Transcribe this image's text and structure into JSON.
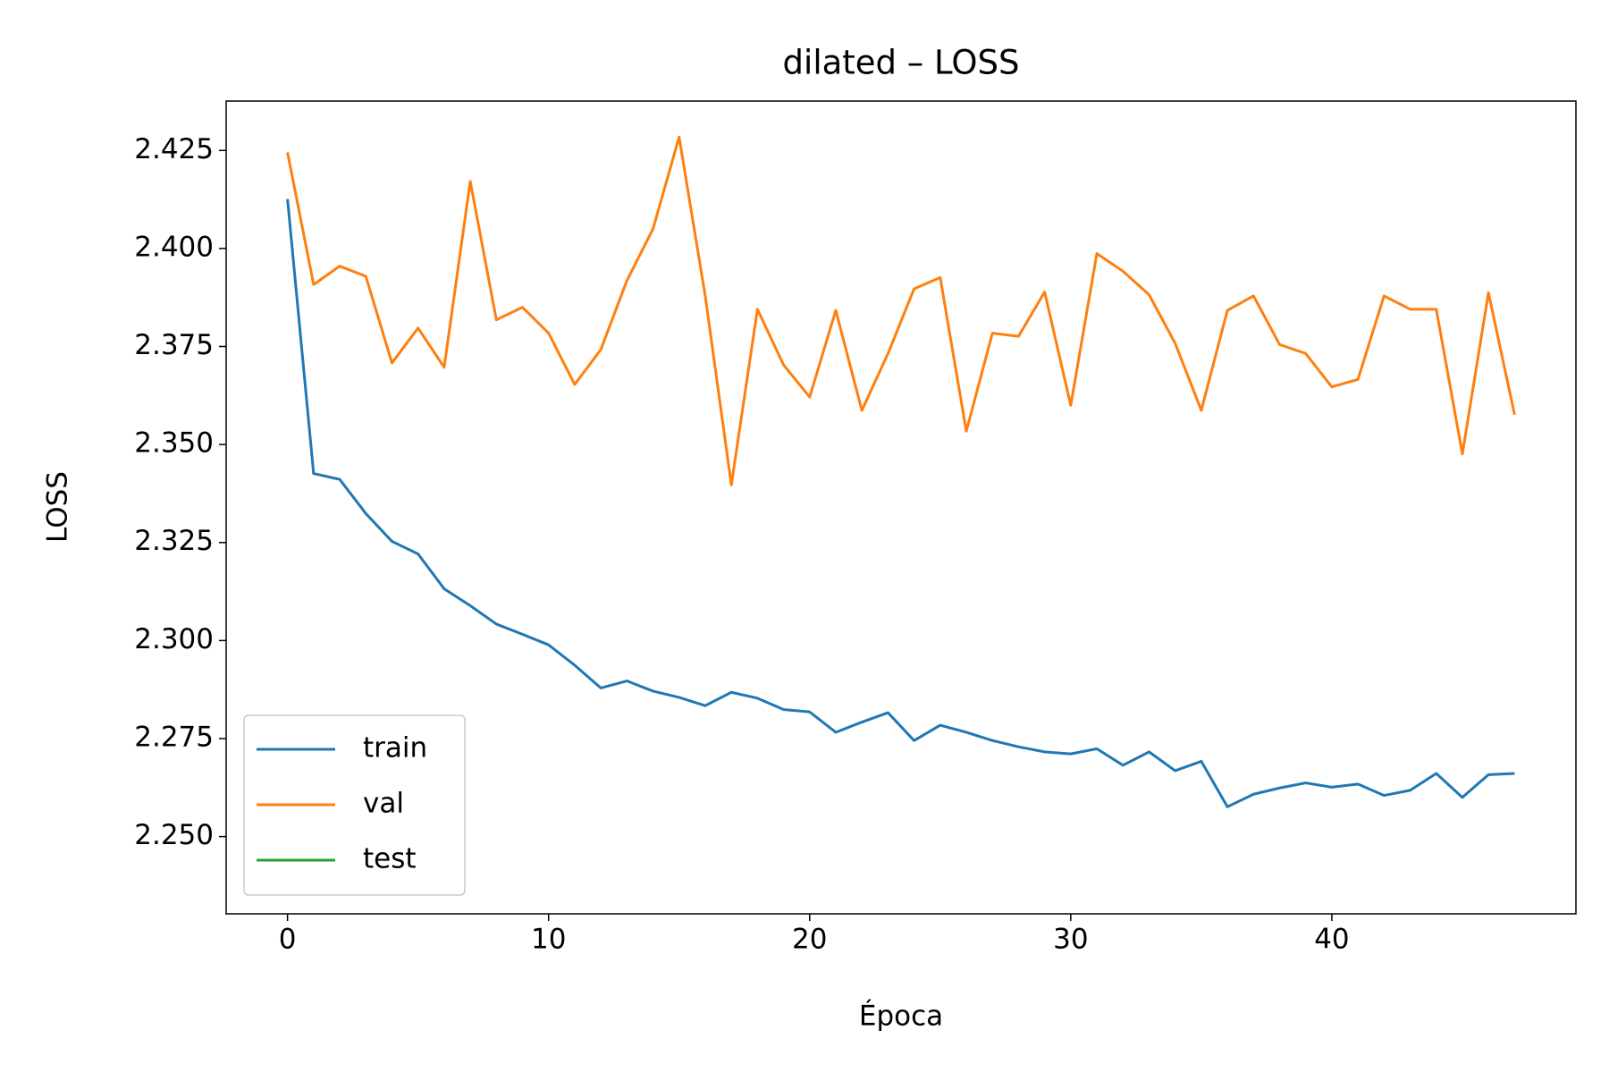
{
  "chart_data": {
    "type": "line",
    "title": "dilated – LOSS",
    "xlabel": "Época",
    "ylabel": "LOSS",
    "x": [
      0,
      1,
      2,
      3,
      4,
      5,
      6,
      7,
      8,
      9,
      10,
      11,
      12,
      13,
      14,
      15,
      16,
      17,
      18,
      19,
      20,
      21,
      22,
      23,
      24,
      25,
      26,
      27,
      28,
      29,
      30,
      31,
      32,
      33,
      34,
      35,
      36,
      37,
      38,
      39,
      40,
      41,
      42,
      43,
      44,
      45,
      46,
      47
    ],
    "series": [
      {
        "name": "train",
        "color": "#1f77b4",
        "values": [
          2.4126,
          2.3426,
          2.3411,
          2.3324,
          2.3253,
          2.3221,
          2.3132,
          2.3089,
          2.3042,
          2.3016,
          2.2989,
          2.2937,
          2.2879,
          2.2897,
          2.2871,
          2.2855,
          2.2834,
          2.2868,
          2.2853,
          2.2824,
          2.2818,
          2.2766,
          2.2792,
          2.2816,
          2.2745,
          2.2784,
          2.2766,
          2.2745,
          2.2729,
          2.2716,
          2.2711,
          2.2724,
          2.2682,
          2.2716,
          2.2668,
          2.2692,
          2.2576,
          2.2608,
          2.2624,
          2.2637,
          2.2626,
          2.2634,
          2.2605,
          2.2618,
          2.2661,
          2.26,
          2.2658,
          2.2661
        ]
      },
      {
        "name": "val",
        "color": "#ff7f0e",
        "values": [
          2.4245,
          2.3908,
          2.3955,
          2.3929,
          2.3708,
          2.3797,
          2.3697,
          2.4171,
          2.3818,
          2.385,
          2.3784,
          2.3653,
          2.3742,
          2.3918,
          2.405,
          2.4284,
          2.3879,
          2.3397,
          2.3845,
          2.3703,
          2.3621,
          2.3842,
          2.3587,
          2.3732,
          2.3897,
          2.3926,
          2.3534,
          2.3784,
          2.3776,
          2.3889,
          2.36,
          2.3987,
          2.3942,
          2.3882,
          2.3758,
          2.3587,
          2.3842,
          2.3879,
          2.3755,
          2.3732,
          2.3647,
          2.3666,
          2.3879,
          2.3845,
          2.3845,
          2.3476,
          2.3887,
          2.3576
        ]
      },
      {
        "name": "test",
        "color": "#2ca02c",
        "values": [
          null,
          null,
          null,
          null,
          null,
          null,
          null,
          null,
          null,
          null,
          null,
          null,
          null,
          null,
          null,
          null,
          null,
          null,
          null,
          null,
          null,
          null,
          null,
          null,
          null,
          null,
          null,
          null,
          null,
          null,
          null,
          null,
          null,
          null,
          null,
          null,
          null,
          null,
          null,
          null,
          null,
          null,
          null,
          null,
          null,
          null,
          null,
          null
        ]
      }
    ],
    "xlim": [
      -2.35,
      49.35
    ],
    "xticks": [
      0,
      10,
      20,
      30,
      40
    ],
    "ylim": [
      2.2303,
      2.4376
    ],
    "yticks": [
      {
        "value": 2.25,
        "label": "2.250"
      },
      {
        "value": 2.275,
        "label": "2.275"
      },
      {
        "value": 2.3,
        "label": "2.300"
      },
      {
        "value": 2.325,
        "label": "2.325"
      },
      {
        "value": 2.35,
        "label": "2.350"
      },
      {
        "value": 2.375,
        "label": "2.375"
      },
      {
        "value": 2.4,
        "label": "2.400"
      },
      {
        "value": 2.425,
        "label": "2.425"
      }
    ],
    "legend": "lower left"
  }
}
